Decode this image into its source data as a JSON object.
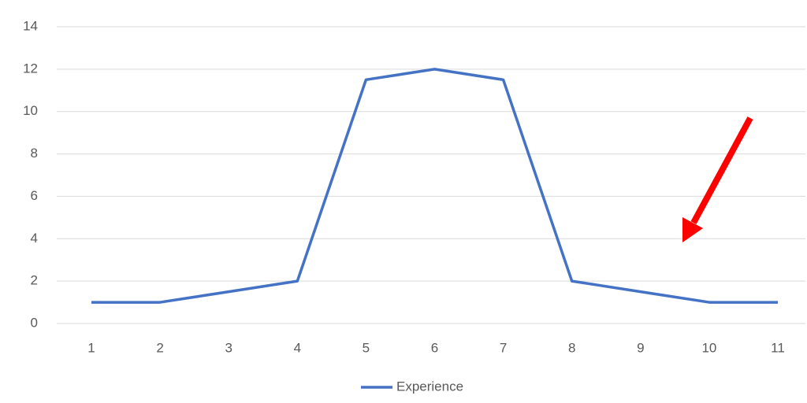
{
  "chart_data": {
    "type": "line",
    "categories": [
      "1",
      "2",
      "3",
      "4",
      "5",
      "6",
      "7",
      "8",
      "9",
      "10",
      "11"
    ],
    "series": [
      {
        "name": "Experience",
        "color": "#4472c4",
        "values": [
          1,
          1,
          1.5,
          2,
          11.5,
          12,
          11.5,
          2,
          1.5,
          1,
          1
        ]
      }
    ],
    "ylim": [
      0,
      14
    ],
    "yticks": [
      0,
      2,
      4,
      6,
      8,
      10,
      12,
      14
    ],
    "grid": true,
    "legend": "bottom"
  }
}
